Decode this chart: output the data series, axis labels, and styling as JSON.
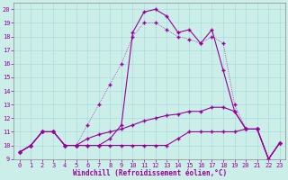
{
  "xlabel": "Windchill (Refroidissement éolien,°C)",
  "background_color": "#cceee8",
  "grid_color": "#aadddd",
  "line_color": "#990099",
  "xlim": [
    -0.5,
    23.5
  ],
  "ylim": [
    9,
    20.5
  ],
  "yticks": [
    9,
    10,
    11,
    12,
    13,
    14,
    15,
    16,
    17,
    18,
    19,
    20
  ],
  "xticks": [
    0,
    1,
    2,
    3,
    4,
    5,
    6,
    7,
    8,
    9,
    10,
    11,
    12,
    13,
    14,
    15,
    16,
    17,
    18,
    19,
    20,
    21,
    22,
    23
  ],
  "series_dotted_x": [
    0,
    1,
    2,
    3,
    4,
    5,
    6,
    7,
    8,
    9,
    10,
    11,
    12,
    13,
    14,
    15,
    16,
    17,
    18,
    19,
    20,
    21,
    22,
    23
  ],
  "series_dotted_y": [
    9.5,
    10.0,
    11.0,
    11.0,
    10.0,
    10.0,
    11.5,
    13.0,
    14.5,
    16.0,
    18.0,
    19.0,
    19.0,
    18.5,
    18.0,
    17.8,
    17.5,
    18.0,
    17.5,
    13.0,
    11.2,
    11.2,
    9.0,
    10.2
  ],
  "series_peak_x": [
    0,
    1,
    2,
    3,
    4,
    5,
    6,
    7,
    8,
    9,
    10,
    11,
    12,
    13,
    14,
    15,
    16,
    17,
    18,
    19,
    20,
    21,
    22,
    23
  ],
  "series_peak_y": [
    9.5,
    10.0,
    11.0,
    11.0,
    10.0,
    10.0,
    10.0,
    10.0,
    10.5,
    11.5,
    18.3,
    19.8,
    20.0,
    19.5,
    18.3,
    18.5,
    17.5,
    18.5,
    15.5,
    12.5,
    11.2,
    11.2,
    9.0,
    10.2
  ],
  "series_flat_x": [
    0,
    1,
    2,
    3,
    4,
    5,
    6,
    7,
    8,
    9,
    10,
    11,
    12,
    13,
    14,
    15,
    16,
    17,
    18,
    19,
    20,
    21,
    22,
    23
  ],
  "series_flat_y": [
    9.5,
    10.0,
    11.0,
    11.0,
    10.0,
    10.0,
    10.0,
    10.0,
    10.0,
    10.0,
    10.0,
    10.0,
    10.0,
    10.0,
    10.5,
    11.0,
    11.0,
    11.0,
    11.0,
    11.0,
    11.2,
    11.2,
    9.0,
    10.2
  ],
  "series_rise_x": [
    0,
    1,
    2,
    3,
    4,
    5,
    6,
    7,
    8,
    9,
    10,
    11,
    12,
    13,
    14,
    15,
    16,
    17,
    18,
    19,
    20,
    21,
    22,
    23
  ],
  "series_rise_y": [
    9.5,
    10.0,
    11.0,
    11.0,
    10.0,
    10.0,
    10.5,
    10.8,
    11.0,
    11.2,
    11.5,
    11.8,
    12.0,
    12.2,
    12.3,
    12.5,
    12.5,
    12.8,
    12.8,
    12.5,
    11.2,
    11.2,
    9.0,
    10.2
  ]
}
